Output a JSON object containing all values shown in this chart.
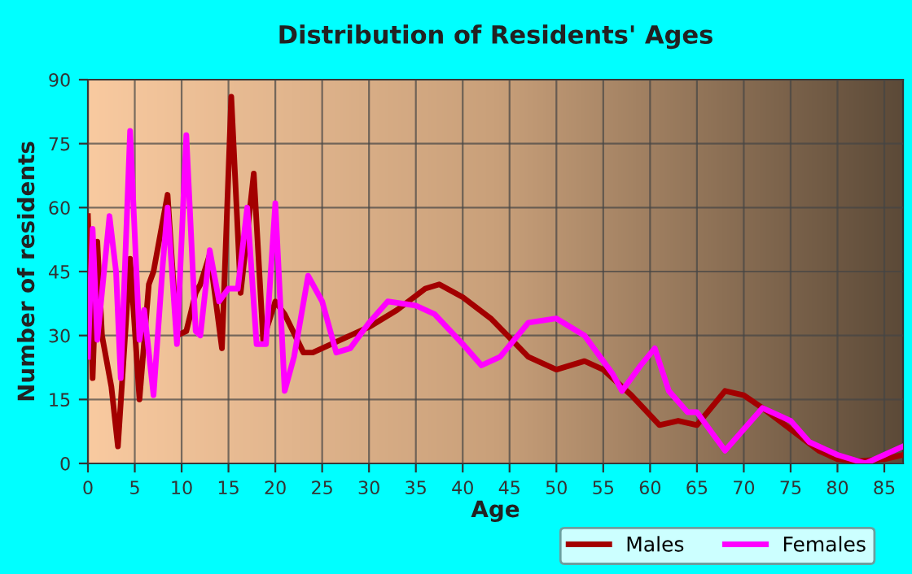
{
  "chart_data": {
    "type": "line",
    "title": "Distribution of Residents' Ages",
    "xlabel": "Age",
    "ylabel": "Number of residents",
    "xlim": [
      0,
      87
    ],
    "ylim": [
      0,
      90
    ],
    "xticks": [
      0,
      5,
      10,
      15,
      20,
      25,
      30,
      35,
      40,
      45,
      50,
      55,
      60,
      65,
      70,
      75,
      80,
      85
    ],
    "yticks": [
      0,
      15,
      30,
      45,
      60,
      75,
      90
    ],
    "grid": true,
    "legend": "bottom",
    "marker": "none",
    "line_style": "solid",
    "series": [
      {
        "name": "Males",
        "color": "#a30000",
        "x": [
          0,
          0.5,
          1,
          1.5,
          2.5,
          3.2,
          4.5,
          5.5,
          6.5,
          7,
          8.5,
          9.5,
          10.5,
          11.5,
          12,
          13,
          14.3,
          15.3,
          16.3,
          17.7,
          18.7,
          20,
          21,
          23,
          24,
          26,
          28,
          30,
          33,
          36,
          37.5,
          40,
          43,
          47,
          50,
          53,
          55,
          58,
          61,
          63,
          65,
          68,
          70,
          72,
          75,
          78,
          80,
          82,
          85,
          87
        ],
        "values": [
          58,
          20,
          52,
          30,
          18,
          4,
          48,
          15,
          42,
          45,
          63,
          30,
          31,
          40,
          42,
          49,
          27,
          86,
          40,
          68,
          29,
          38,
          35,
          26,
          26,
          28,
          30,
          32,
          36,
          41,
          42,
          39,
          34,
          25,
          22,
          24,
          22,
          16,
          9,
          10,
          9,
          17,
          16,
          13,
          8,
          3,
          1,
          0.5,
          1,
          2
        ]
      },
      {
        "name": "Females",
        "color": "#ff00ff",
        "x": [
          0,
          0.5,
          1,
          2.3,
          3,
          3.5,
          4.5,
          5.5,
          6,
          7,
          8,
          8.5,
          9.5,
          10.5,
          11.5,
          12,
          13,
          14,
          15,
          16,
          17,
          18,
          19,
          20,
          21,
          22,
          23.5,
          25,
          26.5,
          28,
          30,
          32,
          35,
          37,
          40,
          42,
          44,
          47,
          50,
          53,
          56,
          57,
          59,
          60.5,
          62,
          64,
          65,
          67,
          68,
          70,
          72,
          75,
          77,
          80,
          83,
          85,
          87
        ],
        "values": [
          25,
          55,
          29,
          58,
          45,
          20,
          78,
          29,
          36,
          16,
          47,
          60,
          28,
          77,
          31,
          30,
          50,
          38,
          41,
          41,
          60,
          28,
          28,
          61,
          17,
          25,
          44,
          38,
          26,
          27,
          33,
          38,
          37,
          35,
          28,
          23,
          25,
          33,
          34,
          30,
          21,
          17,
          23,
          27,
          17,
          12,
          12,
          6,
          3,
          8,
          13,
          10,
          5,
          2,
          0,
          2,
          4
        ]
      }
    ]
  }
}
